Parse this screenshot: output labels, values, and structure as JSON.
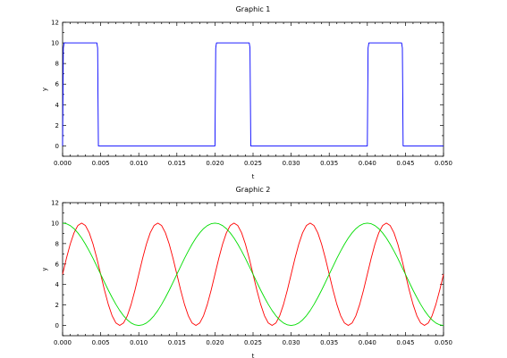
{
  "chart_data": [
    {
      "type": "line",
      "title": "Graphic 1",
      "xlabel": "t",
      "ylabel": "y",
      "xlim": [
        0.0,
        0.05
      ],
      "ylim": [
        -1,
        12
      ],
      "x_ticks": [
        "0.000",
        "0.005",
        "0.010",
        "0.015",
        "0.020",
        "0.025",
        "0.030",
        "0.035",
        "0.040",
        "0.045",
        "0.050"
      ],
      "y_ticks": [
        "0",
        "2",
        "4",
        "6",
        "8",
        "10",
        "12"
      ],
      "grid": false,
      "series": [
        {
          "color": "#0000ff",
          "x": [
            0.0,
            0.0001,
            0.0002,
            0.0045,
            0.0046,
            0.0047,
            0.02,
            0.0201,
            0.0202,
            0.0245,
            0.0246,
            0.0247,
            0.04,
            0.0401,
            0.0402,
            0.0445,
            0.0446,
            0.0447,
            0.05
          ],
          "y": [
            0,
            9.5,
            10,
            10,
            9.5,
            0,
            0,
            9.5,
            10,
            10,
            9.5,
            0,
            0,
            9.5,
            10,
            10,
            9.5,
            0,
            0
          ]
        }
      ]
    },
    {
      "type": "line",
      "title": "Graphic 2",
      "xlabel": "t",
      "ylabel": "y",
      "xlim": [
        0.0,
        0.05
      ],
      "ylim": [
        -1,
        12
      ],
      "x_ticks": [
        "0.000",
        "0.005",
        "0.010",
        "0.015",
        "0.020",
        "0.025",
        "0.030",
        "0.035",
        "0.040",
        "0.045",
        "0.050"
      ],
      "y_ticks": [
        "0",
        "2",
        "4",
        "6",
        "8",
        "10",
        "12"
      ],
      "grid": false,
      "series": [
        {
          "color": "#ff0000",
          "x": [
            0.0,
            0.0005,
            0.001,
            0.0015,
            0.002,
            0.0025,
            0.003,
            0.0035,
            0.004,
            0.0045,
            0.005,
            0.0055,
            0.006,
            0.0065,
            0.007,
            0.0075,
            0.008,
            0.0085,
            0.009,
            0.0095,
            0.01,
            0.0105,
            0.011,
            0.0115,
            0.012,
            0.0125,
            0.013,
            0.0135,
            0.014,
            0.0145,
            0.015,
            0.0155,
            0.016,
            0.0165,
            0.017,
            0.0175,
            0.018,
            0.0185,
            0.019,
            0.0195,
            0.02,
            0.0205,
            0.021,
            0.0215,
            0.022,
            0.0225,
            0.023,
            0.0235,
            0.024,
            0.0245,
            0.025,
            0.0255,
            0.026,
            0.0265,
            0.027,
            0.0275,
            0.028,
            0.0285,
            0.029,
            0.0295,
            0.03,
            0.0305,
            0.031,
            0.0315,
            0.032,
            0.0325,
            0.033,
            0.0335,
            0.034,
            0.0345,
            0.035,
            0.0355,
            0.036,
            0.0365,
            0.037,
            0.0375,
            0.038,
            0.0385,
            0.039,
            0.0395,
            0.04,
            0.0405,
            0.041,
            0.0415,
            0.042,
            0.0425,
            0.043,
            0.0435,
            0.044,
            0.0445,
            0.045,
            0.0455,
            0.046,
            0.0465,
            0.047,
            0.0475,
            0.048,
            0.0485,
            0.049,
            0.0495,
            0.05
          ],
          "y": [
            5.0,
            6.55,
            7.94,
            9.05,
            9.76,
            10.0,
            9.76,
            9.05,
            7.94,
            6.55,
            5.0,
            3.45,
            2.06,
            0.95,
            0.24,
            0.0,
            0.24,
            0.95,
            2.06,
            3.45,
            5.0,
            6.55,
            7.94,
            9.05,
            9.76,
            10.0,
            9.76,
            9.05,
            7.94,
            6.55,
            5.0,
            3.45,
            2.06,
            0.95,
            0.24,
            0.0,
            0.24,
            0.95,
            2.06,
            3.45,
            5.0,
            6.55,
            7.94,
            9.05,
            9.76,
            10.0,
            9.76,
            9.05,
            7.94,
            6.55,
            5.0,
            3.45,
            2.06,
            0.95,
            0.24,
            0.0,
            0.24,
            0.95,
            2.06,
            3.45,
            5.0,
            6.55,
            7.94,
            9.05,
            9.76,
            10.0,
            9.76,
            9.05,
            7.94,
            6.55,
            5.0,
            3.45,
            2.06,
            0.95,
            0.24,
            0.0,
            0.24,
            0.95,
            2.06,
            3.45,
            5.0,
            6.55,
            7.94,
            9.05,
            9.76,
            10.0,
            9.76,
            9.05,
            7.94,
            6.55,
            5.0,
            3.45,
            2.06,
            0.95,
            0.24,
            0.0,
            0.24,
            0.95,
            2.06,
            3.45,
            5.0
          ]
        },
        {
          "color": "#00dd00",
          "x": [
            0.0,
            0.0005,
            0.001,
            0.0015,
            0.002,
            0.0025,
            0.003,
            0.0035,
            0.004,
            0.0045,
            0.005,
            0.0055,
            0.006,
            0.0065,
            0.007,
            0.0075,
            0.008,
            0.0085,
            0.009,
            0.0095,
            0.01,
            0.0105,
            0.011,
            0.0115,
            0.012,
            0.0125,
            0.013,
            0.0135,
            0.014,
            0.0145,
            0.015,
            0.0155,
            0.016,
            0.0165,
            0.017,
            0.0175,
            0.018,
            0.0185,
            0.019,
            0.0195,
            0.02,
            0.0205,
            0.021,
            0.0215,
            0.022,
            0.0225,
            0.023,
            0.0235,
            0.024,
            0.0245,
            0.025,
            0.0255,
            0.026,
            0.0265,
            0.027,
            0.0275,
            0.028,
            0.0285,
            0.029,
            0.0295,
            0.03,
            0.0305,
            0.031,
            0.0315,
            0.032,
            0.0325,
            0.033,
            0.0335,
            0.034,
            0.0345,
            0.035,
            0.0355,
            0.036,
            0.0365,
            0.037,
            0.0375,
            0.038,
            0.0385,
            0.039,
            0.0395,
            0.04,
            0.0405,
            0.041,
            0.0415,
            0.042,
            0.0425,
            0.043,
            0.0435,
            0.044,
            0.0445,
            0.045,
            0.0455,
            0.046,
            0.0465,
            0.047,
            0.0475,
            0.048,
            0.0485,
            0.049,
            0.0495,
            0.05
          ],
          "y": [
            10.0,
            9.94,
            9.76,
            9.46,
            9.05,
            8.54,
            7.94,
            7.27,
            6.55,
            5.78,
            5.0,
            4.22,
            3.45,
            2.73,
            2.06,
            1.46,
            0.95,
            0.54,
            0.24,
            0.06,
            0.0,
            0.06,
            0.24,
            0.54,
            0.95,
            1.46,
            2.06,
            2.73,
            3.45,
            4.22,
            5.0,
            5.78,
            6.55,
            7.27,
            7.94,
            8.54,
            9.05,
            9.46,
            9.76,
            9.94,
            10.0,
            9.94,
            9.76,
            9.46,
            9.05,
            8.54,
            7.94,
            7.27,
            6.55,
            5.78,
            5.0,
            4.22,
            3.45,
            2.73,
            2.06,
            1.46,
            0.95,
            0.54,
            0.24,
            0.06,
            0.0,
            0.06,
            0.24,
            0.54,
            0.95,
            1.46,
            2.06,
            2.73,
            3.45,
            4.22,
            5.0,
            5.78,
            6.55,
            7.27,
            7.94,
            8.54,
            9.05,
            9.46,
            9.76,
            9.94,
            10.0,
            9.94,
            9.76,
            9.46,
            9.05,
            8.54,
            7.94,
            7.27,
            6.55,
            5.78,
            5.0,
            4.22,
            3.45,
            2.73,
            2.06,
            1.46,
            0.95,
            0.54,
            0.24,
            0.06,
            0.0
          ]
        }
      ]
    }
  ]
}
